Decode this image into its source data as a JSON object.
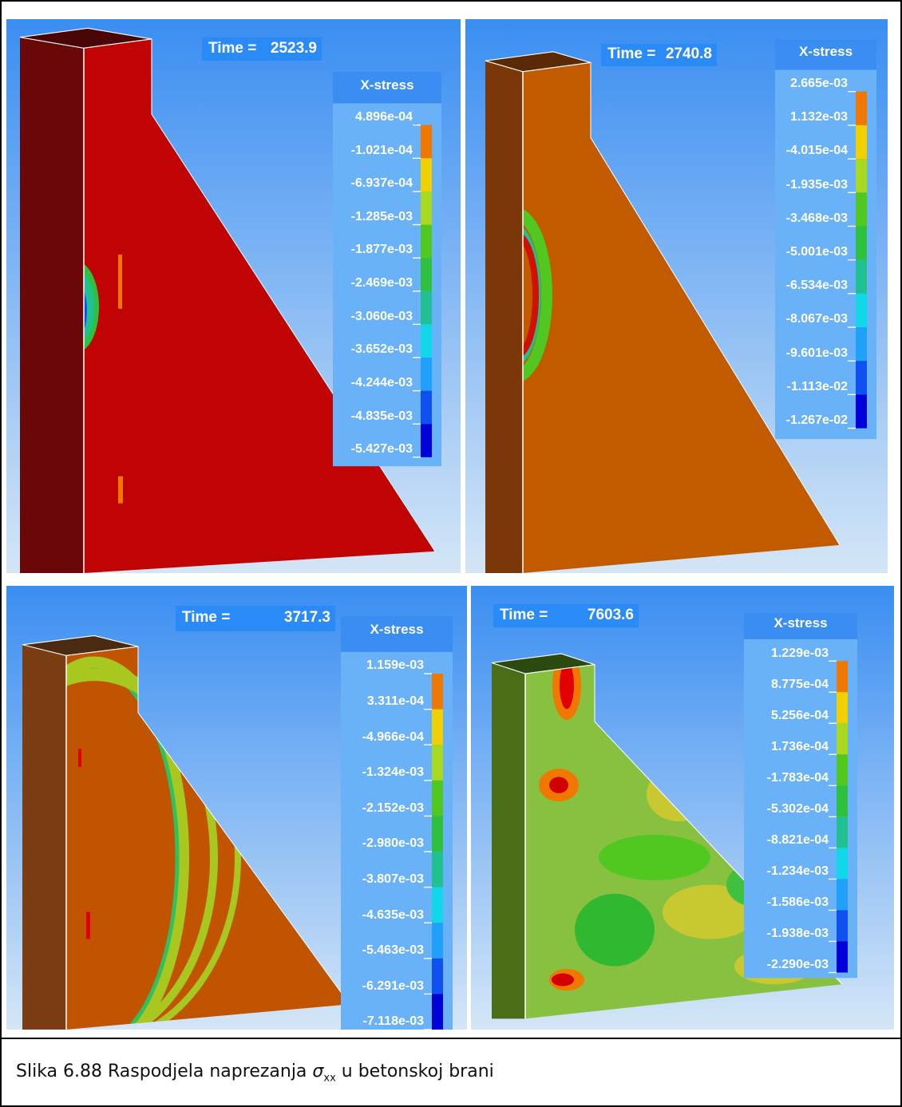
{
  "panels": [
    {
      "time_label": "Time =",
      "time": "2523.9",
      "legend_title": "X-stress",
      "legend_values": [
        "4.896e-04",
        "-1.021e-04",
        "-6.937e-04",
        "-1.285e-03",
        "-1.877e-03",
        "-2.469e-03",
        "-3.060e-03",
        "-3.652e-03",
        "-4.244e-03",
        "-4.835e-03",
        "-5.427e-03"
      ]
    },
    {
      "time_label": "Time =",
      "time": "2740.8",
      "legend_title": "X-stress",
      "legend_values": [
        "2.665e-03",
        "1.132e-03",
        "-4.015e-04",
        "-1.935e-03",
        "-3.468e-03",
        "-5.001e-03",
        "-6.534e-03",
        "-8.067e-03",
        "-9.601e-03",
        "-1.113e-02",
        "-1.267e-02"
      ]
    },
    {
      "time_label": "Time =",
      "time": "3717.3",
      "legend_title": "X-stress",
      "legend_values": [
        "1.159e-03",
        "3.311e-04",
        "-4.966e-04",
        "-1.324e-03",
        "-2.152e-03",
        "-2.980e-03",
        "-3.807e-03",
        "-4.635e-03",
        "-5.463e-03",
        "-6.291e-03",
        "-7.118e-03"
      ]
    },
    {
      "time_label": "Time =",
      "time": "7603.6",
      "legend_title": "X-stress",
      "legend_values": [
        "1.229e-03",
        "8.775e-04",
        "5.256e-04",
        "1.736e-04",
        "-1.783e-04",
        "-5.302e-04",
        "-8.821e-04",
        "-1.234e-03",
        "-1.586e-03",
        "-1.938e-03",
        "-2.290e-03"
      ]
    }
  ],
  "caption": {
    "text": "Slika 6.88 Raspodjela naprezanja ",
    "symbol": "σ",
    "subscript": "xx",
    "suffix": " u betonskoj brani"
  }
}
